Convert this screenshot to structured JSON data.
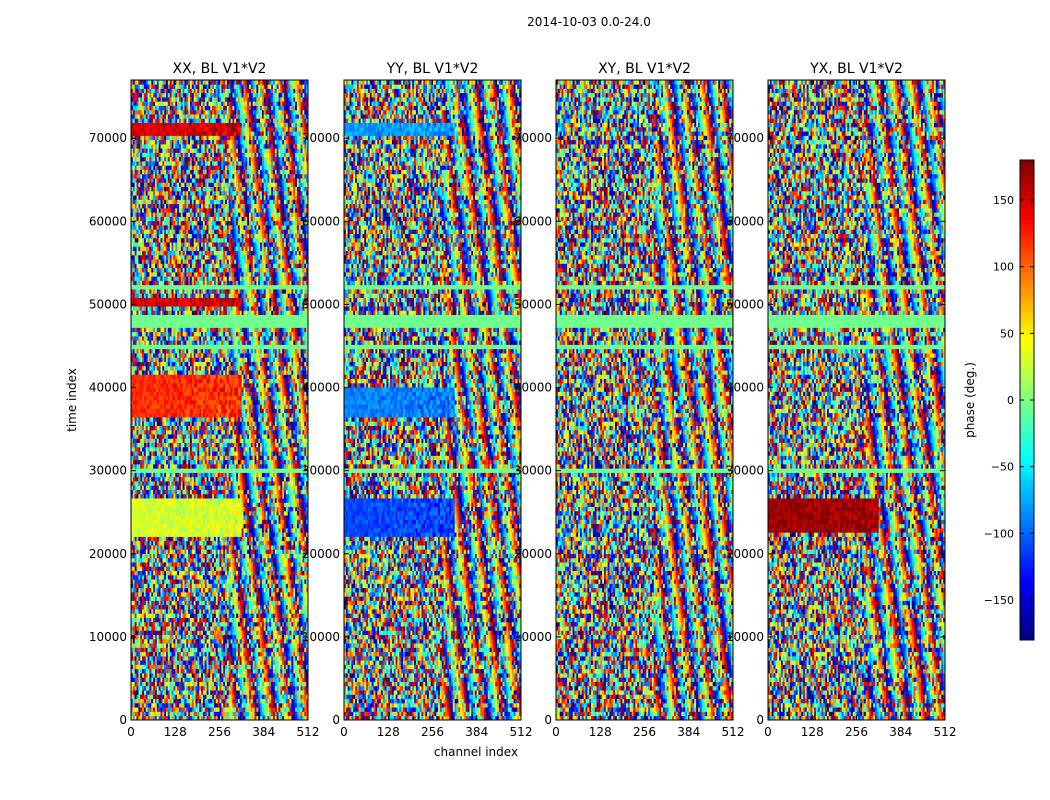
{
  "figure": {
    "suptitle": "2014-10-03 0.0-24.0",
    "xlabel": "channel index",
    "ylabel": "time index",
    "colorbar_label": "phase (deg.)"
  },
  "chart_data": [
    {
      "type": "heatmap",
      "title": "XX, BL V1*V2",
      "xlim": [
        0,
        512
      ],
      "ylim": [
        0,
        77000
      ],
      "xticks": [
        0,
        128,
        256,
        384,
        512
      ],
      "yticks": [
        0,
        10000,
        20000,
        30000,
        40000,
        50000,
        60000,
        70000
      ],
      "value_range": [
        -180,
        180
      ],
      "colormap": "jet",
      "coherent_bands": [
        {
          "t0": 22300,
          "t1": 26600,
          "value": 30
        },
        {
          "t0": 36500,
          "t1": 41500,
          "value": 120
        },
        {
          "t0": 70500,
          "t1": 72000,
          "value": 150
        },
        {
          "t0": 49800,
          "t1": 50700,
          "value": 150
        }
      ]
    },
    {
      "type": "heatmap",
      "title": "YY, BL V1*V2",
      "xlim": [
        0,
        512
      ],
      "ylim": [
        0,
        77000
      ],
      "xticks": [
        0,
        128,
        256,
        384,
        512
      ],
      "yticks": [
        0,
        10000,
        20000,
        30000,
        40000,
        50000,
        60000,
        70000
      ],
      "value_range": [
        -180,
        180
      ],
      "colormap": "jet",
      "coherent_bands": [
        {
          "t0": 22300,
          "t1": 26600,
          "value": -110
        },
        {
          "t0": 36500,
          "t1": 40000,
          "value": -90
        },
        {
          "t0": 70500,
          "t1": 72000,
          "value": -80
        }
      ]
    },
    {
      "type": "heatmap",
      "title": "XY, BL V1*V2",
      "xlim": [
        0,
        512
      ],
      "ylim": [
        0,
        77000
      ],
      "xticks": [
        0,
        128,
        256,
        384,
        512
      ],
      "yticks": [
        0,
        10000,
        20000,
        30000,
        40000,
        50000,
        60000,
        70000
      ],
      "value_range": [
        -180,
        180
      ],
      "colormap": "jet",
      "coherent_bands": []
    },
    {
      "type": "heatmap",
      "title": "YX, BL V1*V2",
      "xlim": [
        0,
        512
      ],
      "ylim": [
        0,
        77000
      ],
      "xticks": [
        0,
        128,
        256,
        384,
        512
      ],
      "yticks": [
        0,
        10000,
        20000,
        30000,
        40000,
        50000,
        60000,
        70000
      ],
      "value_range": [
        -180,
        180
      ],
      "colormap": "jet",
      "coherent_bands": [
        {
          "t0": 22500,
          "t1": 26500,
          "value": 170
        }
      ]
    }
  ],
  "colorbar": {
    "ticks": [
      150,
      100,
      50,
      0,
      -50,
      -100,
      -150
    ],
    "range": [
      -180,
      180
    ]
  },
  "flagged_bands": [
    [
      47000,
      49000
    ],
    [
      44700,
      45100
    ],
    [
      52000,
      52400
    ],
    [
      30000,
      30500
    ]
  ]
}
